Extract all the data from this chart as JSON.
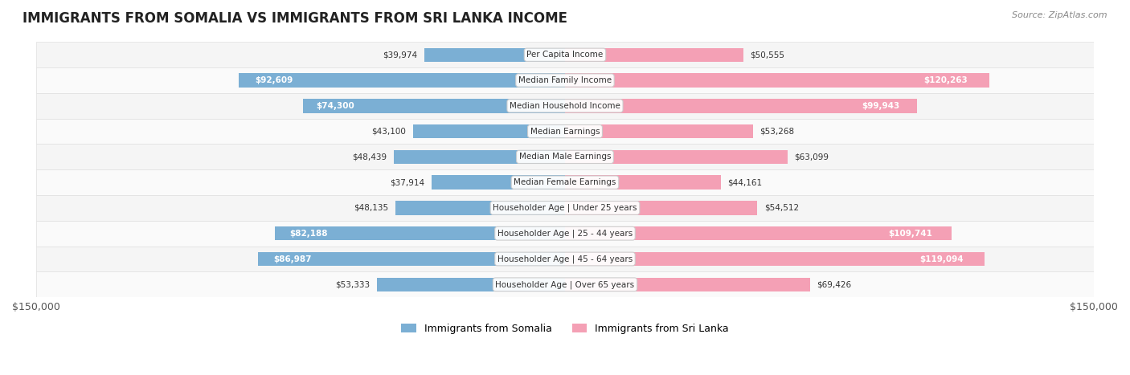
{
  "title": "IMMIGRANTS FROM SOMALIA VS IMMIGRANTS FROM SRI LANKA INCOME",
  "source": "Source: ZipAtlas.com",
  "categories": [
    "Per Capita Income",
    "Median Family Income",
    "Median Household Income",
    "Median Earnings",
    "Median Male Earnings",
    "Median Female Earnings",
    "Householder Age | Under 25 years",
    "Householder Age | 25 - 44 years",
    "Householder Age | 45 - 64 years",
    "Householder Age | Over 65 years"
  ],
  "somalia_values": [
    39974,
    92609,
    74300,
    43100,
    48439,
    37914,
    48135,
    82188,
    86987,
    53333
  ],
  "srilanka_values": [
    50555,
    120263,
    99943,
    53268,
    63099,
    44161,
    54512,
    109741,
    119094,
    69426
  ],
  "somalia_labels": [
    "$39,974",
    "$92,609",
    "$74,300",
    "$43,100",
    "$48,439",
    "$37,914",
    "$48,135",
    "$82,188",
    "$86,987",
    "$53,333"
  ],
  "srilanka_labels": [
    "$50,555",
    "$120,263",
    "$99,943",
    "$53,268",
    "$63,099",
    "$44,161",
    "$54,512",
    "$109,741",
    "$119,094",
    "$69,426"
  ],
  "somalia_color": "#7bafd4",
  "srilanka_color": "#f4a0b5",
  "somalia_color_dark": "#5b9dc8",
  "srilanka_color_dark": "#f07090",
  "max_value": 150000,
  "bar_height": 0.55,
  "bg_row_color": "#f0f0f0",
  "label_inside_threshold": 70000,
  "legend_somalia": "Immigrants from Somalia",
  "legend_srilanka": "Immigrants from Sri Lanka"
}
